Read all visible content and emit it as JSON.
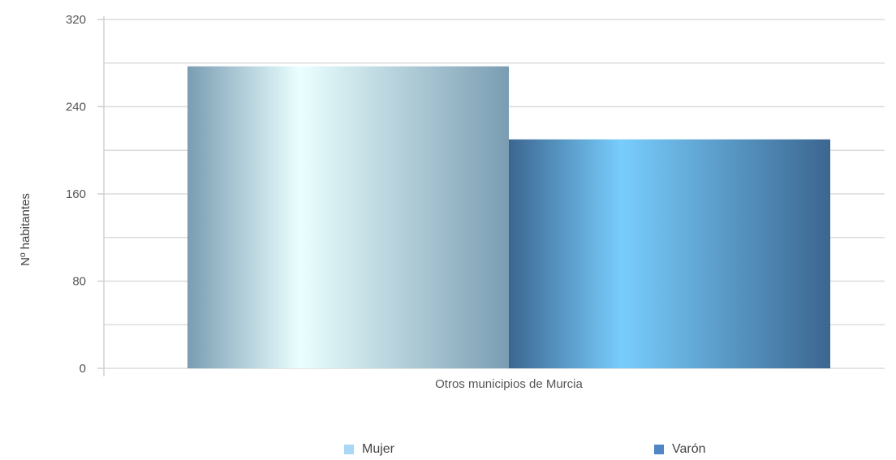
{
  "chart_data": {
    "type": "bar",
    "categories": [
      "Otros municipios de Murcia"
    ],
    "series": [
      {
        "name": "Mujer",
        "values": [
          277
        ]
      },
      {
        "name": "Varón",
        "values": [
          210
        ]
      }
    ],
    "title": "",
    "xlabel": "",
    "ylabel": "Nº habitantes",
    "ylim": [
      0,
      320
    ],
    "yticks": [
      0,
      80,
      160,
      240,
      320
    ],
    "grid": true,
    "legend_position": "bottom",
    "colors": {
      "Mujer": {
        "swatch": "#a8d8f5",
        "edge": "#7a9db3",
        "light": "#eaffff"
      },
      "Varón": {
        "swatch": "#4f86c4",
        "edge": "#3b6690",
        "light": "#78cdfd"
      }
    }
  },
  "legend": {
    "items": [
      {
        "label": "Mujer"
      },
      {
        "label": "Varón"
      }
    ]
  }
}
